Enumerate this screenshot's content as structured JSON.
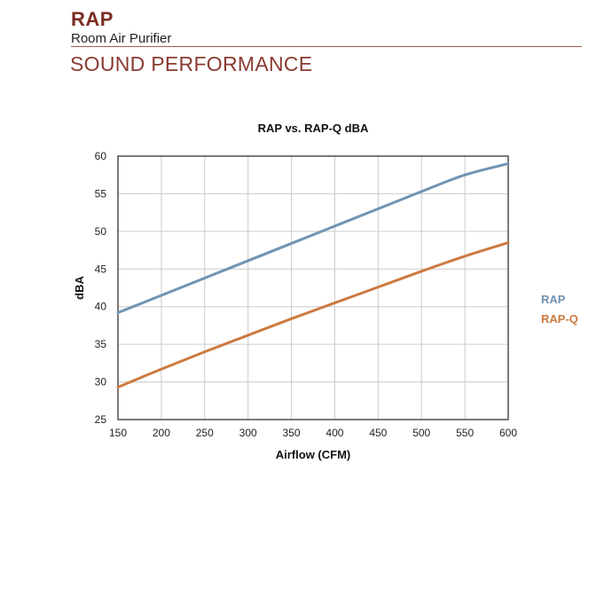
{
  "header": {
    "brand": "RAP",
    "product": "Room Air Purifier",
    "section": "SOUND PERFORMANCE"
  },
  "colors": {
    "brand": "#7a2b22",
    "rap": "#6f93b3",
    "rapq": "#cc7a40",
    "grid": "#cccccc"
  },
  "chart_data": {
    "type": "line",
    "title": "RAP vs. RAP-Q dBA",
    "xlabel": "Airflow (CFM)",
    "ylabel": "dBA",
    "xlim": [
      150,
      600
    ],
    "ylim": [
      25,
      60
    ],
    "xticks": [
      150,
      200,
      250,
      300,
      350,
      400,
      450,
      500,
      550,
      600
    ],
    "yticks": [
      25,
      30,
      35,
      40,
      45,
      50,
      55,
      60
    ],
    "grid": true,
    "legend_position": "right",
    "x": [
      150,
      200,
      250,
      300,
      350,
      400,
      450,
      500,
      550,
      600
    ],
    "series": [
      {
        "name": "RAP",
        "color": "#6f93b3",
        "values": [
          39.2,
          41.5,
          43.8,
          46.1,
          48.4,
          50.7,
          53.0,
          55.3,
          57.5,
          59.0
        ]
      },
      {
        "name": "RAP-Q",
        "color": "#cc7a40",
        "values": [
          29.3,
          31.7,
          34.0,
          36.2,
          38.4,
          40.5,
          42.6,
          44.7,
          46.7,
          48.5
        ]
      }
    ]
  }
}
